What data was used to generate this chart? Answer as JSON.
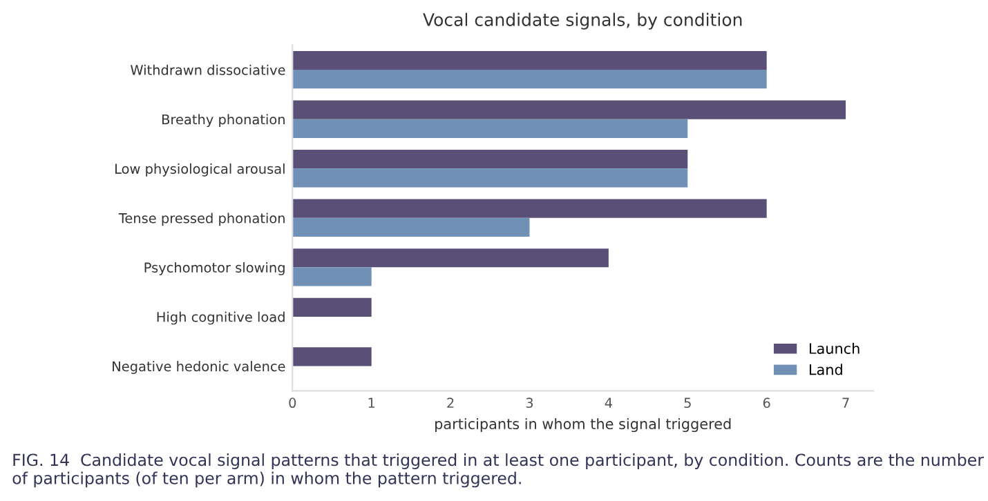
{
  "chart_data": {
    "type": "bar",
    "orientation": "horizontal",
    "title": "Vocal candidate signals, by condition",
    "xlabel": "participants in whom the signal triggered",
    "categories": [
      "Withdrawn dissociative",
      "Breathy phonation",
      "Low physiological arousal",
      "Tense pressed phonation",
      "Psychomotor slowing",
      "High cognitive load",
      "Negative hedonic valence"
    ],
    "series": [
      {
        "name": "Launch",
        "color": "#5a4f76",
        "values": [
          6,
          7,
          5,
          6,
          4,
          1,
          1
        ]
      },
      {
        "name": "Land",
        "color": "#7190b6",
        "values": [
          6,
          5,
          5,
          3,
          1,
          0,
          0
        ]
      }
    ],
    "xlim": [
      0,
      7.35
    ],
    "xticks": [
      0,
      1,
      2,
      3,
      4,
      5,
      6,
      7
    ],
    "grid": false,
    "legend": "bottom right",
    "annotations": [
      "FIG. 14  Candidate vocal signal patterns that triggered in at least one participant, by condition. Counts are the number of participants (of ten per arm) in whom the pattern triggered."
    ]
  }
}
